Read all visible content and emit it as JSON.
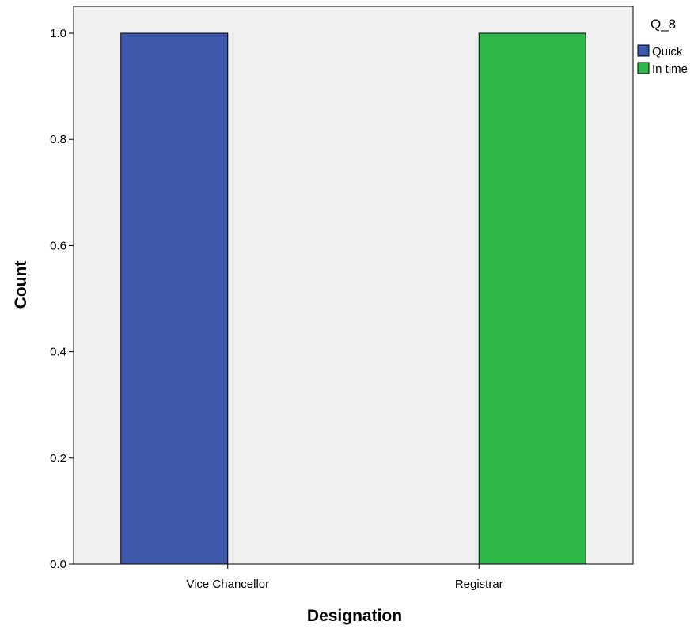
{
  "chart_data": {
    "type": "bar",
    "categories": [
      "Vice Chancellor",
      "Registrar"
    ],
    "series": [
      {
        "name": "Quick",
        "color": "#3e58ac",
        "values": [
          1,
          0
        ]
      },
      {
        "name": "In time",
        "color": "#2eb848",
        "values": [
          0,
          1
        ]
      }
    ],
    "xlabel": "Designation",
    "ylabel": "Count",
    "ylim": [
      0,
      1
    ],
    "yticks": [
      0.0,
      0.2,
      0.4,
      0.6,
      0.8,
      1.0
    ],
    "ytick_labels": [
      "0.0",
      "0.2",
      "0.4",
      "0.6",
      "0.8",
      "1.0"
    ],
    "legend": {
      "title": "Q_8",
      "placement": "top-right-outside"
    },
    "plot_background": "#f0f0f0",
    "grid": false
  }
}
